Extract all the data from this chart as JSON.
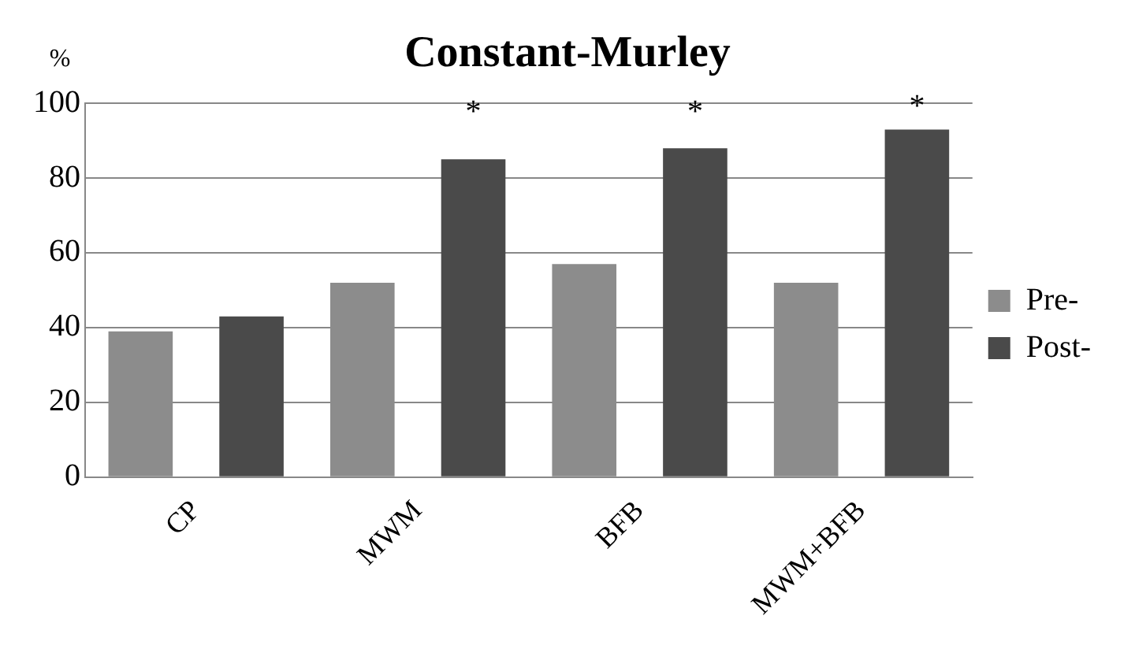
{
  "chart_data": {
    "type": "bar",
    "title": "Constant-Murley",
    "ylabel": "%",
    "categories": [
      "CP",
      "MWM",
      "BFB",
      "MWM+BFB"
    ],
    "series": [
      {
        "name": "Pre-",
        "color": "#8c8c8c",
        "values": [
          39,
          52,
          57,
          52
        ]
      },
      {
        "name": "Post-",
        "color": "#4a4a4a",
        "values": [
          43,
          85,
          88,
          93
        ]
      }
    ],
    "ylim": [
      0,
      100
    ],
    "yticks": [
      0,
      20,
      40,
      60,
      80,
      100
    ],
    "grid": "y",
    "legend": "right",
    "annotations": [
      "*",
      "*",
      "*"
    ]
  }
}
